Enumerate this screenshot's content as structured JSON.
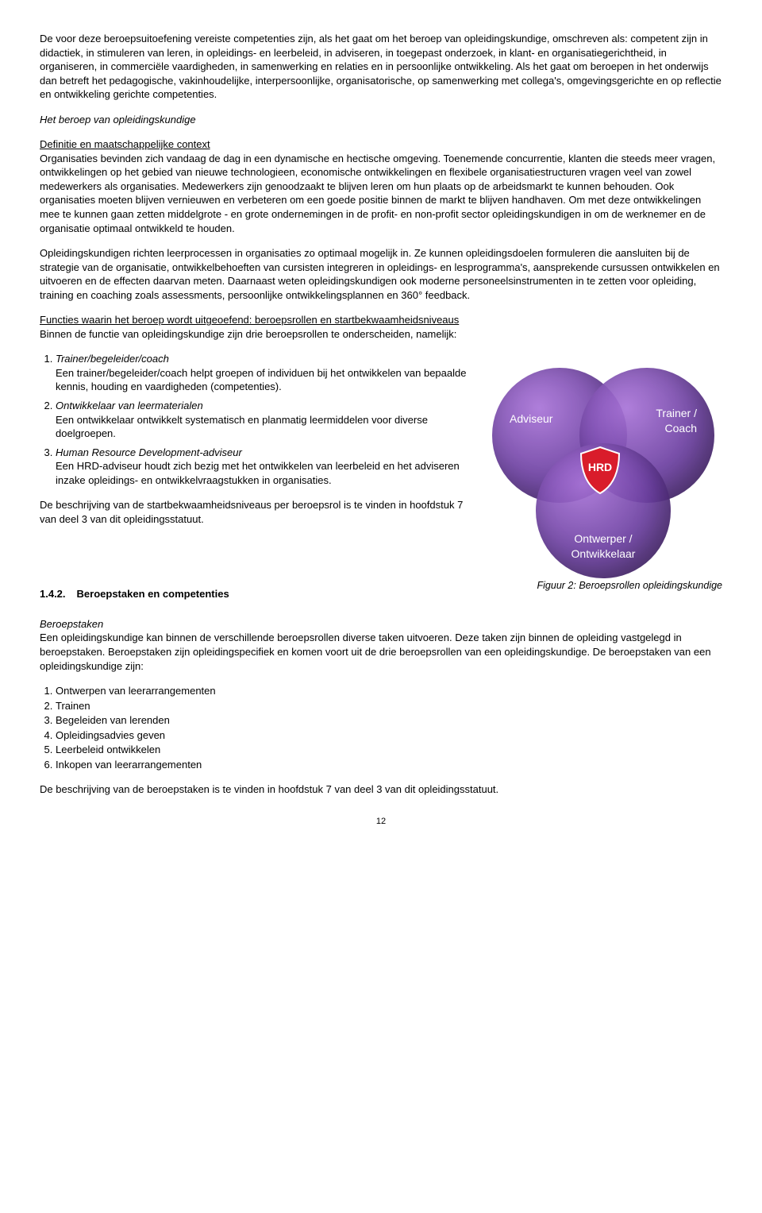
{
  "intro_para": "De voor deze beroepsuitoefening vereiste competenties zijn, als het gaat om het beroep van opleidingskundige, omschreven als: competent zijn in didactiek, in stimuleren van leren, in opleidings- en leerbeleid, in adviseren, in toegepast onderzoek, in klant- en organisatiegerichtheid, in organiseren, in commerciële vaardigheden, in samenwerking en relaties en in persoonlijke ontwikkeling. Als het gaat om beroepen in het onderwijs dan betreft het pedagogische, vakinhoudelijke, interpersoonlijke, organisatorische, op samenwerking met collega's, omgevingsgerichte en op reflectie en ontwikkeling gerichte competenties.",
  "heading_beroep": "Het beroep van opleidingskundige",
  "def_heading": "Definitie en maatschappelijke context",
  "def_para": "Organisaties bevinden zich vandaag de dag in een dynamische en hectische omgeving. Toenemende concurrentie, klanten die steeds meer vragen, ontwikkelingen op het gebied van nieuwe technologieen, economische ontwikkelingen en flexibele organisatiestructuren vragen veel van zowel medewerkers als organisaties. Medewerkers zijn genoodzaakt te blijven leren om hun plaats op de arbeidsmarkt te kunnen behouden. Ook organisaties moeten blijven vernieuwen en verbeteren om een goede positie binnen de markt te blijven handhaven. Om met deze ontwikkelingen mee te kunnen gaan zetten middelgrote - en grote ondernemingen in de profit- en non-profit sector opleidingskundigen in om de werknemer en de organisatie optimaal ontwikkeld te houden.",
  "richten_para": "Opleidingskundigen richten leerprocessen in organisaties zo optimaal mogelijk in. Ze kunnen opleidingsdoelen formuleren die aansluiten bij de strategie van de organisatie, ontwikkelbehoeften van cursisten integreren in opleidings- en lesprogramma's, aansprekende cursussen ontwikkelen en uitvoeren en de effecten daarvan meten. Daarnaast weten opleidingskundigen ook moderne personeelsinstrumenten in te zetten voor opleiding, training en coaching zoals assessments, persoonlijke ontwikkelingsplannen en 360° feedback.",
  "functies_heading": "Functies waarin het beroep wordt uitgeoefend: beroepsrollen en startbekwaamheidsniveaus",
  "functies_intro": "Binnen de functie van opleidingskundige zijn drie beroepsrollen te onderscheiden, namelijk:",
  "roles": [
    {
      "title": "Trainer/begeleider/coach",
      "desc": "Een trainer/begeleider/coach helpt groepen of individuen bij het ontwikkelen van bepaalde kennis, houding en vaardigheden (competenties)."
    },
    {
      "title": "Ontwikkelaar van leermaterialen",
      "desc": "Een ontwikkelaar ontwikkelt systematisch en planmatig leermiddelen voor diverse doelgroepen."
    },
    {
      "title": "Human Resource Development-adviseur",
      "desc": "Een HRD-adviseur houdt zich bezig met het ontwikkelen van leerbeleid en het adviseren inzake opleidings- en ontwikkelvraagstukken in organisaties."
    }
  ],
  "start_para": "De beschrijving van de startbekwaamheidsniveaus per beroepsrol is te vinden in hoofdstuk 7 van deel 3 van dit opleidingsstatuut.",
  "venn": {
    "adviseur": "Adviseur",
    "trainer": "Trainer /\nCoach",
    "ontwerper": "Ontwerper /\nOntwikkelaar",
    "center": "HRD",
    "circle_color": "#6b3fa0",
    "shield_color": "#d91c2b"
  },
  "section_num": "1.4.2.",
  "section_title": "Beroepstaken en competenties",
  "fig_caption": "Figuur 2: Beroepsrollen opleidingskundige",
  "beroepstaken_heading": "Beroepstaken",
  "beroepstaken_para": "Een opleidingskundige kan binnen de verschillende beroepsrollen diverse taken uitvoeren. Deze taken zijn binnen de opleiding vastgelegd in beroepstaken. Beroepstaken zijn opleidingspecifiek en komen voort uit de drie beroepsrollen van een opleidingskundige. De beroepstaken van een opleidingskundige zijn:",
  "tasks": [
    "Ontwerpen van leerarrangementen",
    "Trainen",
    "Begeleiden van lerenden",
    "Opleidingsadvies geven",
    "Leerbeleid ontwikkelen",
    "Inkopen van leerarrangementen"
  ],
  "closing": "De beschrijving van de beroepstaken is te vinden in hoofdstuk 7 van deel 3 van dit opleidingsstatuut.",
  "page_number": "12"
}
